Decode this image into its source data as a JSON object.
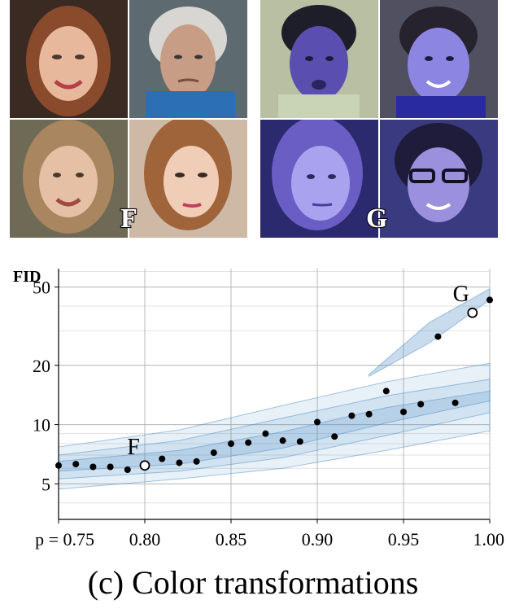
{
  "panels": {
    "f": {
      "letter": "F",
      "tint": "natural"
    },
    "g": {
      "letter": "G",
      "tint": "#5a55c8"
    }
  },
  "caption": "(c) Color transformations",
  "chart_data": {
    "type": "scatter",
    "ylabel": "FID",
    "y_scale": "log",
    "ylim": [
      3.3,
      62
    ],
    "xlim": [
      0.75,
      1.0
    ],
    "x_ticks": [
      0.75,
      0.8,
      0.85,
      0.9,
      0.95,
      1.0
    ],
    "x_tick_labels": [
      "p = 0.75",
      "0.80",
      "0.85",
      "0.90",
      "0.95",
      "1.00"
    ],
    "y_ticks": [
      5,
      10,
      20,
      50
    ],
    "y_tick_labels": [
      "5",
      "10",
      "20",
      "50"
    ],
    "grid": true,
    "series": [
      {
        "marker": "dot",
        "color": "#000000",
        "x": [
          0.75,
          0.76,
          0.77,
          0.78,
          0.79,
          0.81,
          0.82,
          0.83,
          0.84,
          0.85,
          0.86,
          0.87,
          0.88,
          0.89,
          0.9,
          0.91,
          0.92,
          0.93,
          0.94,
          0.95,
          0.96,
          0.97,
          0.98,
          1.0
        ],
        "y": [
          6.2,
          6.3,
          6.1,
          6.1,
          5.9,
          6.7,
          6.4,
          6.5,
          7.2,
          8.0,
          8.1,
          9.0,
          8.3,
          8.2,
          10.3,
          8.7,
          11.1,
          11.3,
          14.8,
          11.6,
          12.7,
          28.0,
          12.9,
          43.0
        ]
      },
      {
        "marker": "circle-open",
        "color": "#000000",
        "x": [
          0.8,
          0.99
        ],
        "y": [
          6.2,
          37.0
        ],
        "labels": [
          "F",
          "G"
        ]
      }
    ],
    "band_color": "#4a8cc4"
  }
}
